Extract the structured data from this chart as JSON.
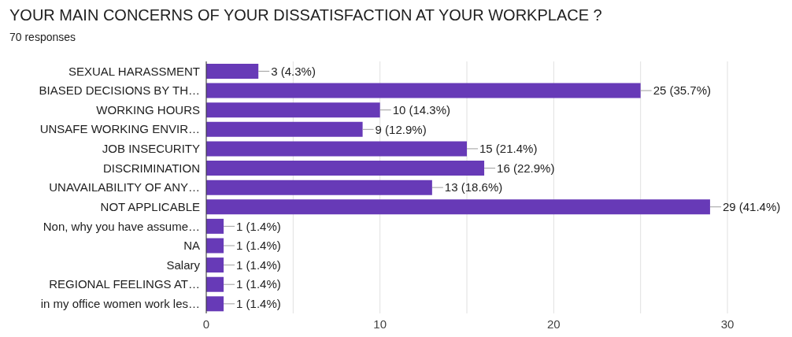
{
  "chart_data": {
    "type": "bar",
    "orientation": "horizontal",
    "title": "YOUR MAIN CONCERNS OF YOUR DISSATISFACTION AT YOUR WORKPLACE ?",
    "subtitle": "70 responses",
    "categories": [
      "SEXUAL HARASSMENT",
      "BIASED DECISIONS BY TH…",
      "WORKING HOURS",
      "UNSAFE WORKING ENVIR…",
      "JOB INSECURITY",
      "DISCRIMINATION",
      "UNAVAILABILITY OF ANY…",
      "NOT APPLICABLE",
      "Non, why you have assume…",
      "NA",
      "Salary",
      "REGIONAL FEELINGS AT…",
      "in my office women work les…"
    ],
    "values": [
      3,
      25,
      10,
      9,
      15,
      16,
      13,
      29,
      1,
      1,
      1,
      1,
      1
    ],
    "value_labels": [
      "3 (4.3%)",
      "25 (35.7%)",
      "10 (14.3%)",
      "9 (12.9%)",
      "15 (21.4%)",
      "16 (22.9%)",
      "13 (18.6%)",
      "29 (41.4%)",
      "1 (1.4%)",
      "1 (1.4%)",
      "1 (1.4%)",
      "1 (1.4%)",
      "1 (1.4%)"
    ],
    "color": "#673ab7",
    "xlim": [
      0,
      30
    ],
    "xticks": [
      0,
      {
        "value": 5,
        "label": null
      },
      10,
      {
        "value": 15,
        "label": null
      },
      20,
      {
        "value": 25,
        "label": null
      },
      30
    ],
    "grid": "x",
    "legend": false
  }
}
